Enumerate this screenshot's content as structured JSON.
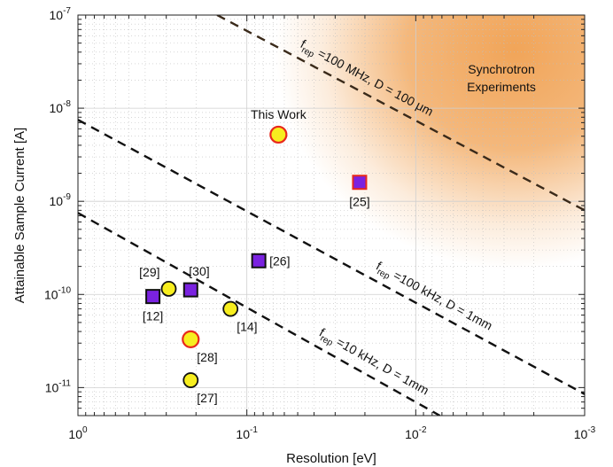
{
  "chart_data": {
    "type": "scatter",
    "xlabel": "Resolution [eV]",
    "ylabel": "Attainable Sample Current [A]",
    "x_scale": "log",
    "y_scale": "log",
    "x_reversed": true,
    "xlim": [
      1,
      0.001
    ],
    "ylim": [
      5e-12,
      1e-07
    ],
    "grid": true,
    "x_ticks": [
      {
        "value": 1,
        "label": "10^0"
      },
      {
        "value": 0.1,
        "label": "10^-1"
      },
      {
        "value": 0.01,
        "label": "10^-2"
      },
      {
        "value": 0.001,
        "label": "10^-3"
      }
    ],
    "y_ticks": [
      {
        "value": 1e-11,
        "label": "10^-11"
      },
      {
        "value": 1e-10,
        "label": "10^-10"
      },
      {
        "value": 1e-09,
        "label": "10^-9"
      },
      {
        "value": 1e-08,
        "label": "10^-8"
      },
      {
        "value": 1e-07,
        "label": "10^-7"
      }
    ],
    "region": {
      "label_lines": [
        "Synchrotron",
        "Experiments"
      ],
      "color": "#f0a050"
    },
    "lines": [
      {
        "label_sub": "rep",
        "label_rest": " =100 MHz, D = 100 μm",
        "points": [
          [
            0.15,
            1e-07
          ],
          [
            0.001,
            8e-10
          ]
        ]
      },
      {
        "label_sub": "rep",
        "label_rest": " =100 kHz, D = 1mm",
        "points": [
          [
            1,
            7.5e-09
          ],
          [
            0.001,
            8.5e-12
          ]
        ]
      },
      {
        "label_sub": "rep",
        "label_rest": " =10 kHz, D = 1mm",
        "points": [
          [
            1,
            7.5e-10
          ],
          [
            0.0072,
            5e-12
          ]
        ]
      }
    ],
    "points": [
      {
        "ref": "This Work",
        "x": 0.065,
        "y": 5.2e-09,
        "marker": "circle",
        "fill": "#f7ee1f",
        "stroke": "#e8291c",
        "size": "medium",
        "label_pos": "above"
      },
      {
        "ref": "[25]",
        "x": 0.0215,
        "y": 1.6e-09,
        "marker": "square",
        "fill": "#7a22e0",
        "stroke": "#e8291c",
        "size": "small",
        "label_pos": "below"
      },
      {
        "ref": "[26]",
        "x": 0.085,
        "y": 2.3e-10,
        "marker": "square",
        "fill": "#7a22e0",
        "stroke": "#111111",
        "size": "small",
        "label_pos": "right"
      },
      {
        "ref": "[12]",
        "x": 0.36,
        "y": 9.5e-11,
        "marker": "square",
        "fill": "#7a22e0",
        "stroke": "#111111",
        "size": "small",
        "label_pos": "below"
      },
      {
        "ref": "[29]",
        "x": 0.29,
        "y": 1.15e-10,
        "marker": "circle",
        "fill": "#f7ee1f",
        "stroke": "#111111",
        "size": "small",
        "label_pos": "above-left"
      },
      {
        "ref": "[30]",
        "x": 0.215,
        "y": 1.12e-10,
        "marker": "square",
        "fill": "#7a22e0",
        "stroke": "#111111",
        "size": "small",
        "label_pos": "above-right"
      },
      {
        "ref": "[14]",
        "x": 0.125,
        "y": 7e-11,
        "marker": "circle",
        "fill": "#f7ee1f",
        "stroke": "#111111",
        "size": "small",
        "label_pos": "below-right"
      },
      {
        "ref": "[28]",
        "x": 0.215,
        "y": 3.3e-11,
        "marker": "circle",
        "fill": "#f7ee1f",
        "stroke": "#e8291c",
        "size": "medium",
        "label_pos": "below-right"
      },
      {
        "ref": "[27]",
        "x": 0.215,
        "y": 1.2e-11,
        "marker": "circle",
        "fill": "#f7ee1f",
        "stroke": "#111111",
        "size": "small",
        "label_pos": "below-right"
      }
    ]
  }
}
